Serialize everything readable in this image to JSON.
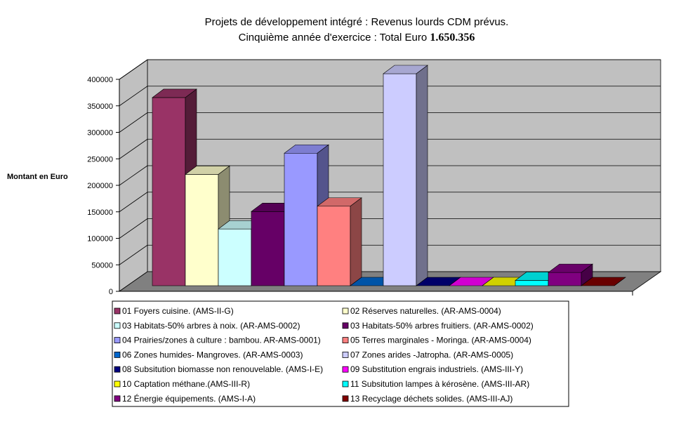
{
  "chart_data": {
    "type": "bar",
    "title_line1": "Projets de développement intégré : Revenus lourds CDM prévus.",
    "title_line2_text": "Cinquième année d'exercice : Total Euro ",
    "title_line2_total": "1.650.356",
    "ylabel": "Montant en Euro",
    "ylim": [
      0,
      400000
    ],
    "yticks": [
      0,
      50000,
      100000,
      150000,
      200000,
      250000,
      300000,
      350000,
      400000
    ],
    "ytick_labels": [
      "0",
      "50000",
      "100000",
      "150000",
      "200000",
      "250000",
      "300000",
      "350000",
      "400000"
    ],
    "grid": true,
    "legend_position": "bottom",
    "series": [
      {
        "name": "01 Foyers cuisine. (AMS-II-G)",
        "value": 355000,
        "color": "#993366"
      },
      {
        "name": "02 Réserves naturelles. (AR-AMS-0004)",
        "value": 210000,
        "color": "#FFFFCC"
      },
      {
        "name": "03 Habitats-50% arbres à noix. (AR-AMS-0002)",
        "value": 107000,
        "color": "#CCFFFF"
      },
      {
        "name": "03 Habitats-50% arbres fruitiers. (AR-AMS-0002)",
        "value": 140000,
        "color": "#660066"
      },
      {
        "name": "04 Prairies/zones à culture : bambou. AR-AMS-0001)",
        "value": 250000,
        "color": "#9999FF"
      },
      {
        "name": "05 Terres marginales - Moringa. (AR-AMS-0004)",
        "value": 150000,
        "color": "#FF8080"
      },
      {
        "name": "06 Zones humides- Mangroves. (AR-AMS-0003)",
        "value": 0,
        "color": "#0066CC"
      },
      {
        "name": "07 Zones arides -Jatropha. (AR-AMS-0005)",
        "value": 400000,
        "color": "#CCCCFF"
      },
      {
        "name": "08 Subsitution biomasse non renouvelable. (AMS-I-E)",
        "value": 0,
        "color": "#000080"
      },
      {
        "name": "09 Substitution engrais industriels. (AMS-III-Y)",
        "value": 0,
        "color": "#FF00FF"
      },
      {
        "name": "10 Captation méthane.(AMS-III-R)",
        "value": 0,
        "color": "#FFFF00"
      },
      {
        "name": "11 Subsitution lampes à kérosène. (AMS-III-AR)",
        "value": 10000,
        "color": "#00FFFF"
      },
      {
        "name": "12 Énergie équipements. (AMS-I-A)",
        "value": 25000,
        "color": "#800080"
      },
      {
        "name": "13 Recyclage déchets solides. (AMS-III-AJ)",
        "value": 0,
        "color": "#800000"
      }
    ]
  },
  "colors": {
    "wall": "#C0C0C0",
    "floor": "#808080",
    "grid": "#000000"
  }
}
